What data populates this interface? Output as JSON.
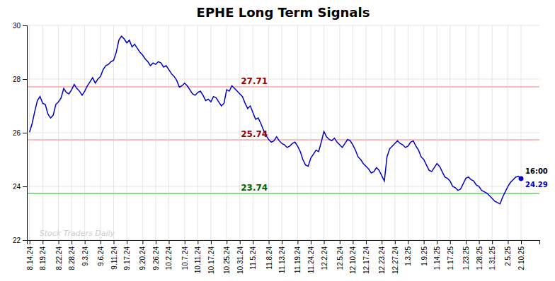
{
  "chart_data": {
    "type": "line",
    "title": "EPHE Long Term Signals",
    "categories": [
      "8.14.24",
      null,
      null,
      null,
      null,
      "8.19.24",
      null,
      null,
      null,
      null,
      null,
      "8.22.24",
      null,
      null,
      null,
      null,
      "8.28.24",
      null,
      null,
      null,
      null,
      "9.3.24",
      null,
      null,
      null,
      null,
      null,
      "9.6.24",
      null,
      null,
      null,
      null,
      "9.11.24",
      null,
      null,
      null,
      null,
      "9.17.24",
      null,
      null,
      null,
      null,
      null,
      "9.20.24",
      null,
      null,
      null,
      null,
      "9.26.24",
      null,
      null,
      null,
      null,
      "10.2.24",
      null,
      null,
      null,
      null,
      null,
      "10.7.24",
      null,
      null,
      null,
      null,
      "10.11.24",
      null,
      null,
      null,
      null,
      "10.17.24",
      null,
      null,
      null,
      null,
      null,
      "10.25.24",
      null,
      null,
      null,
      null,
      "10.31.24",
      null,
      null,
      null,
      null,
      "11.5.24",
      null,
      null,
      null,
      null,
      null,
      "11.8.24",
      null,
      null,
      null,
      null,
      "11.13.24",
      null,
      null,
      null,
      null,
      null,
      "11.19.24",
      null,
      null,
      null,
      null,
      "11.24.24",
      null,
      null,
      null,
      null,
      "12.2.24",
      null,
      null,
      null,
      null,
      null,
      "12.5.24",
      null,
      null,
      null,
      null,
      "12.10.24",
      null,
      null,
      null,
      null,
      "12.17.24",
      null,
      null,
      null,
      null,
      null,
      "12.23.24",
      null,
      null,
      null,
      null,
      "12.27.24",
      null,
      null,
      null,
      null,
      "1.3.25",
      null,
      null,
      null,
      null,
      null,
      "1.9.25",
      null,
      null,
      null,
      null,
      "1.14.25",
      null,
      null,
      null,
      null,
      "1.17.25",
      null,
      null,
      null,
      null,
      null,
      "1.23.25",
      null,
      null,
      null,
      null,
      "1.28.25",
      null,
      null,
      null,
      null,
      "1.31.25",
      null,
      null,
      null,
      null,
      null,
      "2.5.25",
      null,
      null,
      null,
      null,
      "2.10.25"
    ],
    "values": [
      26.02,
      26.35,
      26.8,
      27.2,
      27.35,
      27.1,
      27.05,
      26.7,
      26.55,
      26.65,
      27.05,
      27.15,
      27.3,
      27.65,
      27.5,
      27.45,
      27.6,
      27.8,
      27.65,
      27.55,
      27.4,
      27.55,
      27.75,
      27.9,
      28.05,
      27.85,
      28.0,
      28.1,
      28.35,
      28.5,
      28.55,
      28.65,
      28.7,
      29.0,
      29.45,
      29.6,
      29.5,
      29.35,
      29.45,
      29.2,
      29.3,
      29.15,
      29.0,
      28.9,
      28.75,
      28.65,
      28.5,
      28.6,
      28.55,
      28.65,
      28.6,
      28.45,
      28.5,
      28.35,
      28.2,
      28.1,
      27.95,
      27.7,
      27.75,
      27.85,
      27.75,
      27.6,
      27.45,
      27.4,
      27.5,
      27.55,
      27.4,
      27.2,
      27.25,
      27.15,
      27.35,
      27.3,
      27.15,
      27.0,
      27.1,
      27.6,
      27.55,
      27.75,
      27.65,
      27.55,
      27.45,
      27.35,
      27.1,
      26.9,
      27.0,
      26.75,
      26.5,
      26.55,
      26.35,
      26.1,
      25.9,
      25.74,
      25.65,
      25.7,
      25.85,
      25.7,
      25.6,
      25.55,
      25.45,
      25.5,
      25.6,
      25.65,
      25.5,
      25.3,
      25.0,
      24.8,
      24.75,
      25.05,
      25.2,
      25.35,
      25.3,
      25.65,
      26.05,
      25.85,
      25.75,
      25.7,
      25.8,
      25.65,
      25.55,
      25.45,
      25.6,
      25.75,
      25.7,
      25.55,
      25.35,
      25.1,
      25.0,
      24.85,
      24.75,
      24.65,
      24.5,
      24.55,
      24.7,
      24.6,
      24.4,
      24.2,
      25.1,
      25.4,
      25.5,
      25.6,
      25.7,
      25.6,
      25.55,
      25.45,
      25.5,
      25.65,
      25.7,
      25.5,
      25.35,
      25.1,
      25.0,
      24.8,
      24.6,
      24.55,
      24.7,
      24.85,
      24.75,
      24.55,
      24.35,
      24.3,
      24.2,
      24.0,
      23.95,
      23.85,
      23.9,
      24.1,
      24.3,
      24.35,
      24.25,
      24.2,
      24.05,
      24.0,
      23.85,
      23.8,
      23.75,
      23.65,
      23.55,
      23.45,
      23.4,
      23.35,
      23.6,
      23.8,
      24.0,
      24.15,
      24.25,
      24.35,
      24.38,
      24.29
    ],
    "color": "#0000cc",
    "marker": "last",
    "ylim": [
      22,
      30
    ],
    "yticks": [
      22,
      24,
      26,
      28,
      30
    ],
    "grid": true,
    "reference_lines": [
      {
        "value": 27.71,
        "label": "27.71",
        "color": "#ffbbbb",
        "label_color": "#990000"
      },
      {
        "value": 25.74,
        "label": "25.74",
        "color": "#ffbbbb",
        "label_color": "#990000"
      },
      {
        "value": 23.74,
        "label": "23.74",
        "color": "#88dd88",
        "label_color": "#006600"
      }
    ],
    "end_label": "16:00",
    "end_value_label": "24.29",
    "watermark": "Stock Traders Daily",
    "watermark_color": "#cccccc"
  }
}
